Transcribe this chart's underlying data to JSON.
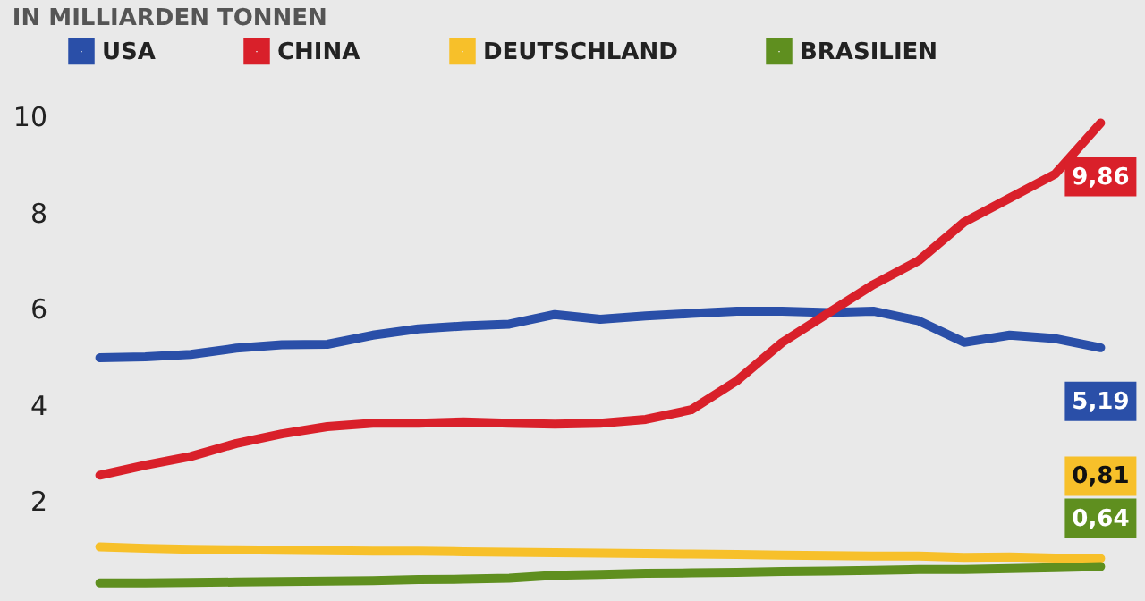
{
  "chart_data": {
    "type": "line",
    "title": "IN MILLIARDEN TONNEN",
    "categories": [
      null,
      null,
      null,
      null,
      null,
      null,
      null,
      null,
      null,
      null,
      null,
      null,
      null,
      null,
      null,
      null,
      null,
      null,
      null,
      null,
      null,
      null,
      null
    ],
    "series": [
      {
        "name": "USA",
        "color": "#2a4fa8",
        "values": [
          4.98,
          5.0,
          5.05,
          5.18,
          5.25,
          5.26,
          5.45,
          5.58,
          5.64,
          5.68,
          5.88,
          5.78,
          5.85,
          5.9,
          5.95,
          5.95,
          5.92,
          5.95,
          5.75,
          5.3,
          5.45,
          5.38,
          5.19
        ],
        "value_labels": [
          null,
          null,
          null,
          null,
          null,
          null,
          null,
          null,
          null,
          null,
          null,
          null,
          null,
          null,
          null,
          null,
          null,
          null,
          null,
          null,
          null,
          null,
          "5,19"
        ]
      },
      {
        "name": "CHINA",
        "color": "#d9202a",
        "values": [
          2.54,
          2.75,
          2.93,
          3.2,
          3.4,
          3.55,
          3.62,
          3.62,
          3.65,
          3.62,
          3.6,
          3.62,
          3.7,
          3.9,
          4.5,
          5.3,
          5.9,
          6.5,
          7.0,
          7.8,
          8.3,
          8.8,
          9.86
        ],
        "value_labels": [
          null,
          null,
          null,
          null,
          null,
          null,
          null,
          null,
          null,
          null,
          null,
          null,
          null,
          null,
          null,
          null,
          null,
          null,
          null,
          null,
          null,
          null,
          "9,86"
        ]
      },
      {
        "name": "DEUTSCHLAND",
        "color": "#f7c02a",
        "values": [
          1.05,
          1.02,
          1.0,
          0.99,
          0.98,
          0.97,
          0.96,
          0.96,
          0.95,
          0.94,
          0.93,
          0.92,
          0.91,
          0.9,
          0.89,
          0.88,
          0.87,
          0.86,
          0.86,
          0.83,
          0.84,
          0.82,
          0.81
        ],
        "value_labels": [
          null,
          null,
          null,
          null,
          null,
          null,
          null,
          null,
          null,
          null,
          null,
          null,
          null,
          null,
          null,
          null,
          null,
          null,
          null,
          null,
          null,
          null,
          "0,81"
        ]
      },
      {
        "name": "BRASILIEN",
        "color": "#5f8f1f",
        "values": [
          0.3,
          0.3,
          0.31,
          0.32,
          0.33,
          0.34,
          0.35,
          0.37,
          0.38,
          0.4,
          0.46,
          0.48,
          0.5,
          0.51,
          0.52,
          0.54,
          0.55,
          0.56,
          0.58,
          0.58,
          0.6,
          0.62,
          0.64
        ],
        "value_labels": [
          null,
          null,
          null,
          null,
          null,
          null,
          null,
          null,
          null,
          null,
          null,
          null,
          null,
          null,
          null,
          null,
          null,
          null,
          null,
          null,
          null,
          null,
          "0,64"
        ]
      }
    ],
    "ylim": [
      0,
      10
    ],
    "yticks": [
      2,
      4,
      6,
      8,
      10
    ],
    "grid": false,
    "legend": "top",
    "tick_labels": "y",
    "line_style": "solid",
    "marker": "none"
  }
}
